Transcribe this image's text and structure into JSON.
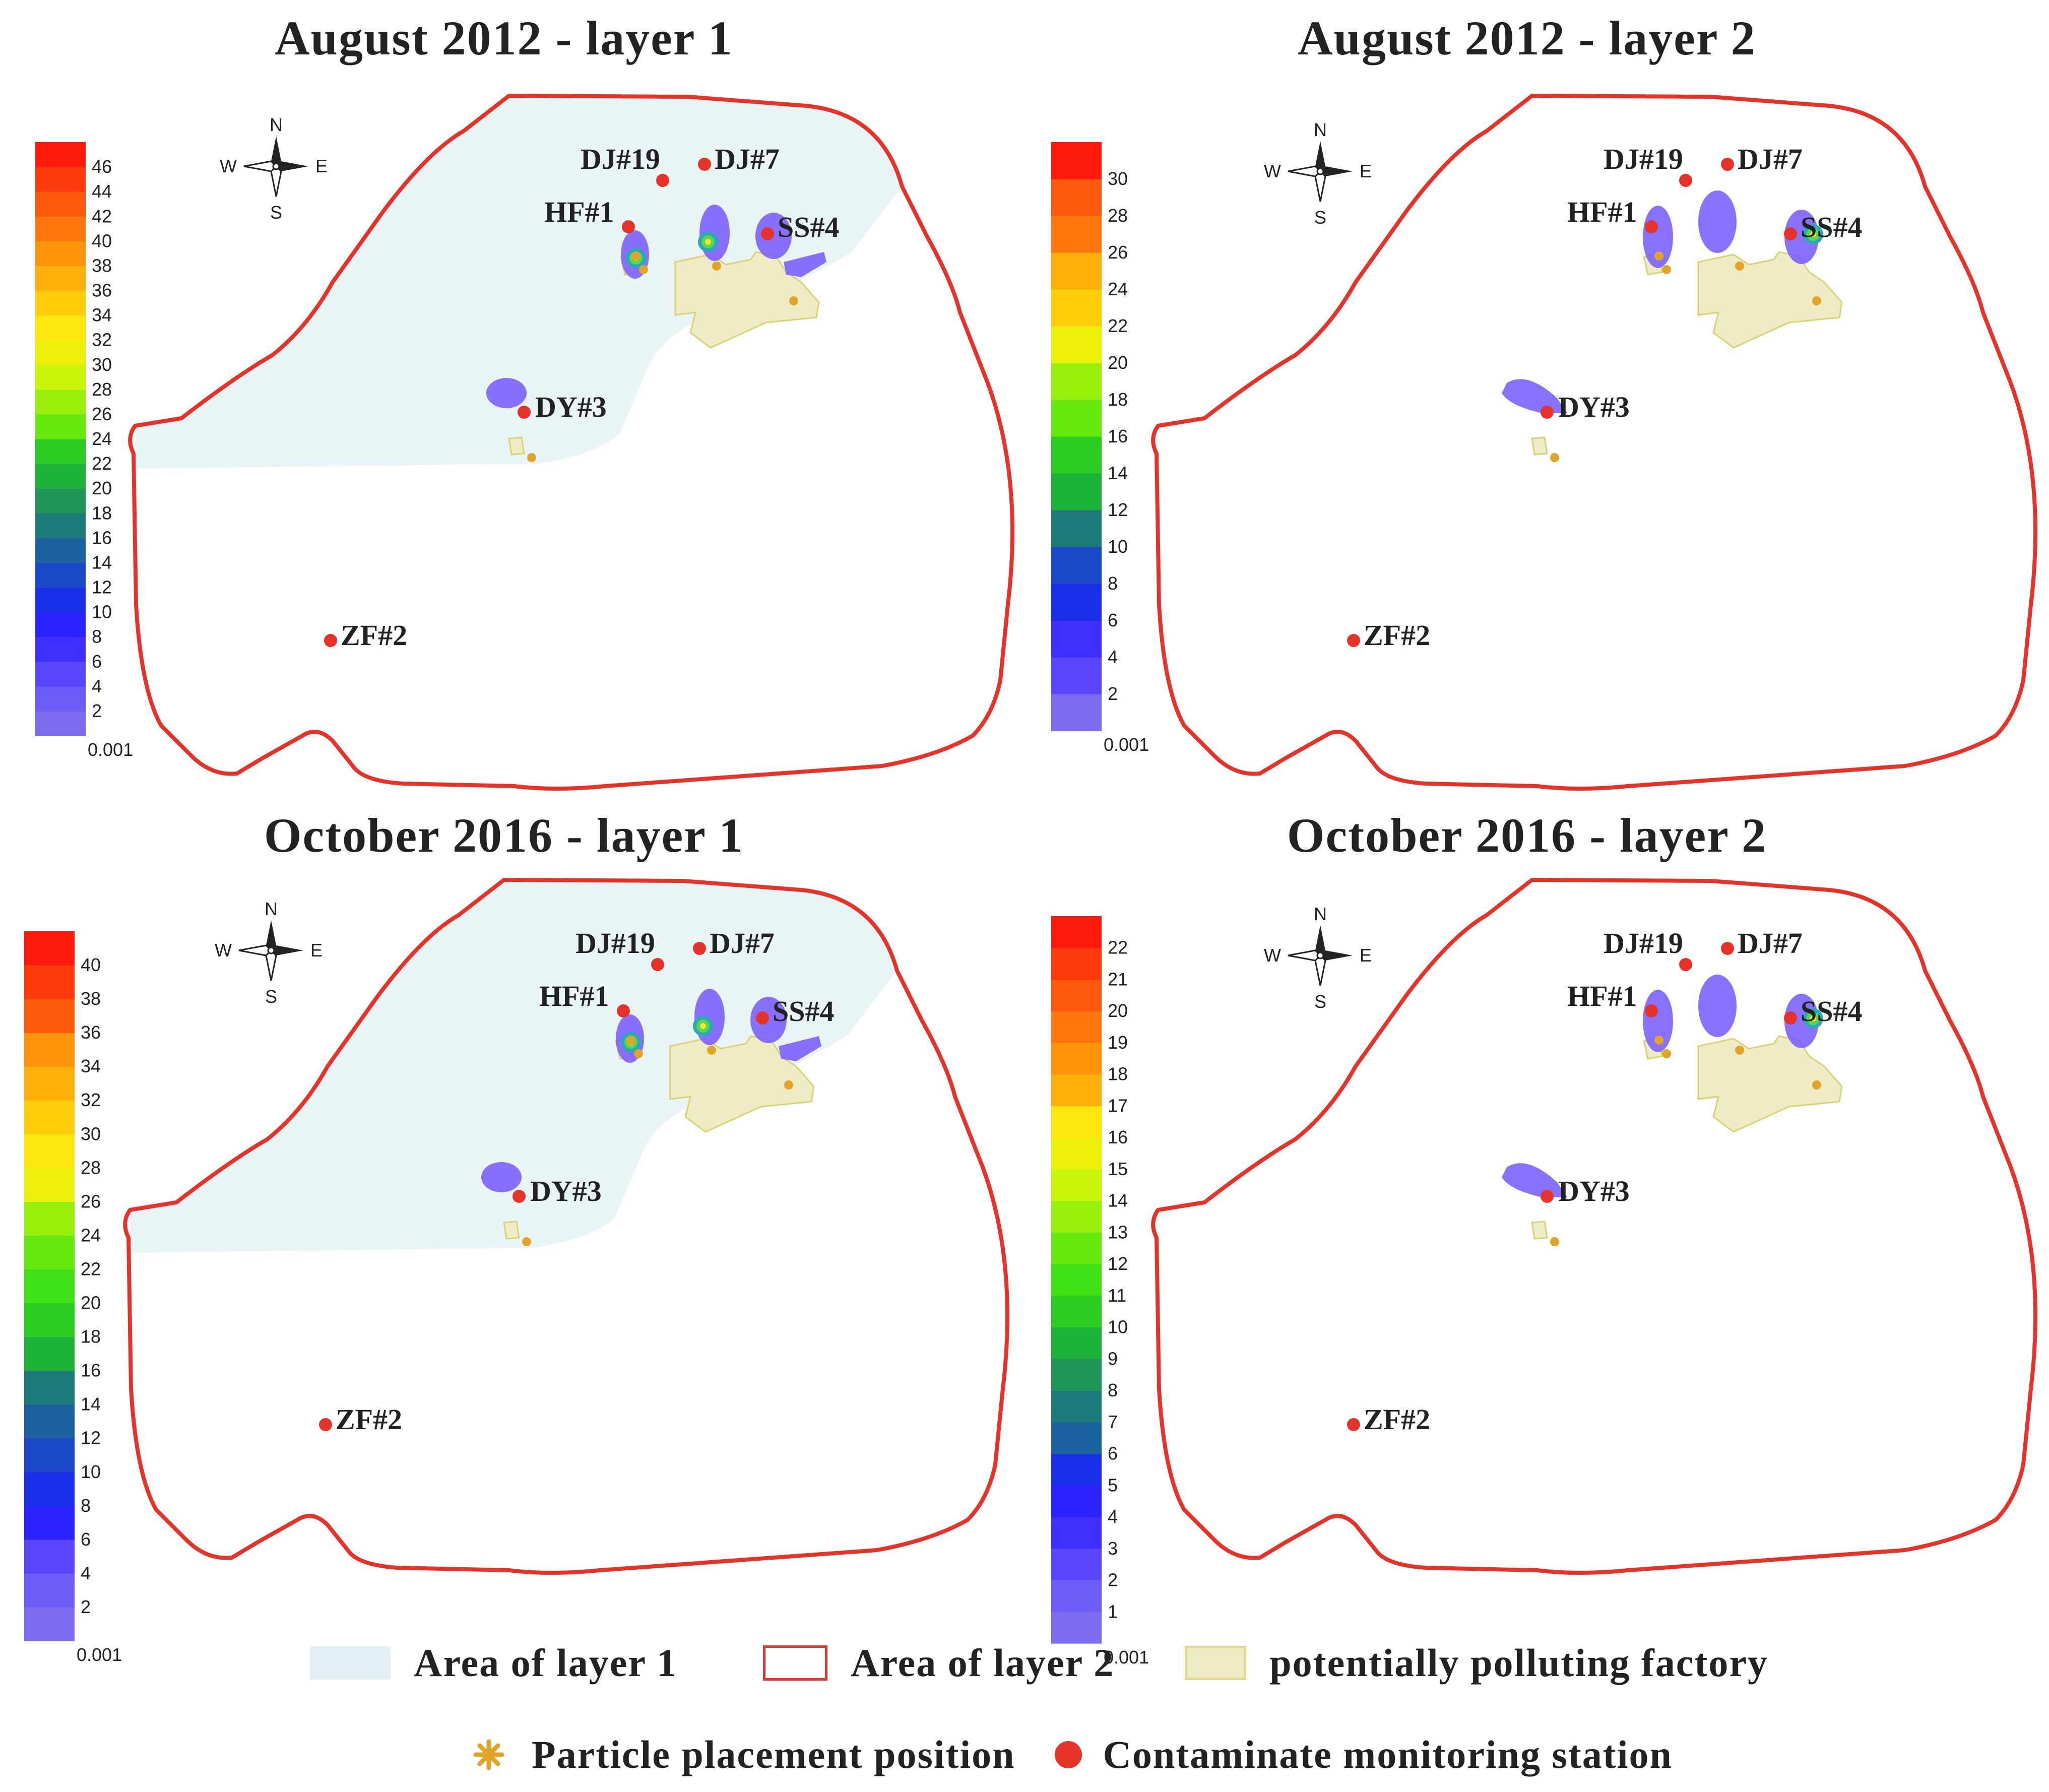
{
  "colors": {
    "boundary": "#e5332a",
    "layer1_fill": "#e9f4f6",
    "factory_fill": "#eeecc4",
    "factory_stroke": "#d9d277",
    "station": "#e5332a",
    "particle": "#e0a528",
    "plume": "#7a5cff"
  },
  "panels": [
    {
      "id": "aug2012-l1",
      "title": "August 2012 - layer 1",
      "show_layer1": true,
      "colorbar": {
        "ticks": [
          "46",
          "44",
          "42",
          "40",
          "38",
          "36",
          "34",
          "32",
          "30",
          "28",
          "26",
          "24",
          "22",
          "20",
          "18",
          "16",
          "14",
          "12",
          "10",
          "8",
          "6",
          "4",
          "2"
        ],
        "min_label": "0.001"
      },
      "compass": {
        "n": "N",
        "s": "S",
        "w": "W",
        "e": "E"
      },
      "stations": [
        {
          "name": "DJ#19"
        },
        {
          "name": "DJ#7"
        },
        {
          "name": "HF#1"
        },
        {
          "name": "SS#4"
        },
        {
          "name": "DY#3"
        },
        {
          "name": "ZF#2"
        }
      ]
    },
    {
      "id": "aug2012-l2",
      "title": "August 2012 - layer 2",
      "show_layer1": false,
      "colorbar": {
        "ticks": [
          "30",
          "28",
          "26",
          "24",
          "22",
          "20",
          "18",
          "16",
          "14",
          "12",
          "10",
          "8",
          "6",
          "4",
          "2"
        ],
        "min_label": "0.001"
      },
      "compass": {
        "n": "N",
        "s": "S",
        "w": "W",
        "e": "E"
      },
      "stations": [
        {
          "name": "DJ#19"
        },
        {
          "name": "DJ#7"
        },
        {
          "name": "HF#1"
        },
        {
          "name": "SS#4"
        },
        {
          "name": "DY#3"
        },
        {
          "name": "ZF#2"
        }
      ]
    },
    {
      "id": "oct2016-l1",
      "title": "October 2016 - layer 1",
      "show_layer1": true,
      "colorbar": {
        "ticks": [
          "40",
          "38",
          "36",
          "34",
          "32",
          "30",
          "28",
          "26",
          "24",
          "22",
          "20",
          "18",
          "16",
          "14",
          "12",
          "10",
          "8",
          "6",
          "4",
          "2"
        ],
        "min_label": "0.001"
      },
      "compass": {
        "n": "N",
        "s": "S",
        "w": "W",
        "e": "E"
      },
      "stations": [
        {
          "name": "DJ#19"
        },
        {
          "name": "DJ#7"
        },
        {
          "name": "HF#1"
        },
        {
          "name": "SS#4"
        },
        {
          "name": "DY#3"
        },
        {
          "name": "ZF#2"
        }
      ]
    },
    {
      "id": "oct2016-l2",
      "title": "October 2016 - layer 2",
      "show_layer1": false,
      "colorbar": {
        "ticks": [
          "22",
          "21",
          "20",
          "19",
          "18",
          "17",
          "16",
          "15",
          "14",
          "13",
          "12",
          "11",
          "10",
          "9",
          "8",
          "7",
          "6",
          "5",
          "4",
          "3",
          "2",
          "1"
        ],
        "min_label": "0.001"
      },
      "compass": {
        "n": "N",
        "s": "S",
        "w": "W",
        "e": "E"
      },
      "stations": [
        {
          "name": "DJ#19"
        },
        {
          "name": "DJ#7"
        },
        {
          "name": "HF#1"
        },
        {
          "name": "SS#4"
        },
        {
          "name": "DY#3"
        },
        {
          "name": "ZF#2"
        }
      ]
    }
  ],
  "legend": {
    "layer1_label": "Area of layer 1",
    "layer2_label": "Area of layer 2",
    "factory_label": "potentially polluting factory",
    "particle_label": "Particle placement position",
    "station_label": "Contaminate monitoring station"
  }
}
